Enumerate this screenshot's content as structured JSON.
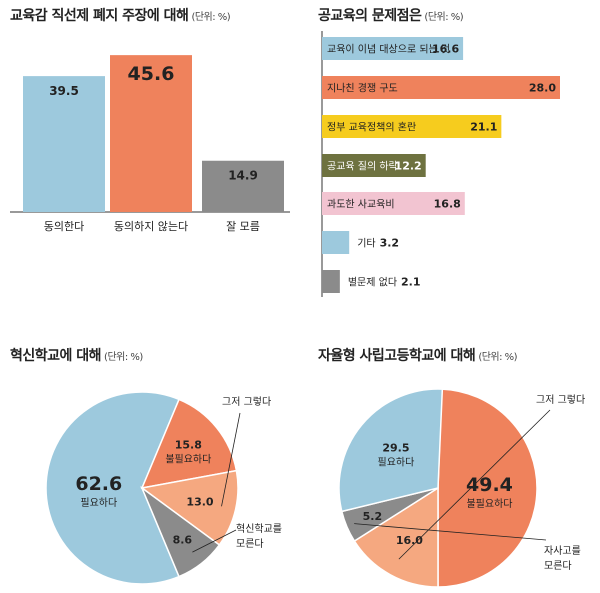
{
  "colors": {
    "blue": "#9dc9dd",
    "orange": "#ef825c",
    "gray": "#8b8b8b",
    "yellow": "#f6cc1e",
    "olive": "#6e7240",
    "pink": "#f2c4d1",
    "light_orange": "#f5a880"
  },
  "chart_data": [
    {
      "type": "bar",
      "title": "교육감 직선제 폐지 주장에 대해",
      "unit": "(단위: %)",
      "categories": [
        "동의한다",
        "동의하지 않는다",
        "잘 모름"
      ],
      "values": [
        39.5,
        45.6,
        14.9
      ],
      "value_labels": [
        "39.5",
        "45.6",
        "14.9"
      ],
      "colors": [
        "#9dc9dd",
        "#ef825c",
        "#8b8b8b"
      ],
      "ylim": [
        0,
        50
      ]
    },
    {
      "type": "bar",
      "orientation": "horizontal",
      "title": "공교육의 문제점은",
      "unit": "(단위: %)",
      "categories": [
        "교육이 이념 대상으로 되는 것",
        "지나친 경쟁 구도",
        "정부 교육정책의 혼란",
        "공교육 질의 하락",
        "과도한 사교육비",
        "기타",
        "별문제 없다"
      ],
      "values": [
        16.6,
        28.0,
        21.1,
        12.2,
        16.8,
        3.2,
        2.1
      ],
      "value_labels": [
        "16.6",
        "28.0",
        "21.1",
        "12.2",
        "16.8",
        "3.2",
        "2.1"
      ],
      "colors": [
        "#9dc9dd",
        "#ef825c",
        "#f6cc1e",
        "#6e7240",
        "#f2c4d1",
        "#9dc9dd",
        "#8b8b8b"
      ],
      "xlim": [
        0,
        28
      ]
    },
    {
      "type": "pie",
      "title": "혁신학교에 대해",
      "unit": "(단위: %)",
      "categories": [
        "필요하다",
        "불필요하다",
        "그저 그렇다",
        "혁신학교를 모른다"
      ],
      "values": [
        62.6,
        15.8,
        13.0,
        8.6
      ],
      "value_labels": [
        "62.6",
        "15.8",
        "13.0",
        "8.6"
      ],
      "colors": [
        "#9dc9dd",
        "#ef825c",
        "#f5a880",
        "#8b8b8b"
      ]
    },
    {
      "type": "pie",
      "title": "자율형 사립고등학교에 대해",
      "unit": "(단위: %)",
      "categories": [
        "불필요하다",
        "그저 그렇다",
        "자사고를 모른다",
        "필요하다"
      ],
      "values": [
        49.4,
        16.0,
        5.2,
        29.5
      ],
      "value_labels": [
        "49.4",
        "16.0",
        "5.2",
        "29.5"
      ],
      "colors": [
        "#ef825c",
        "#f5a880",
        "#8b8b8b",
        "#9dc9dd"
      ]
    }
  ]
}
